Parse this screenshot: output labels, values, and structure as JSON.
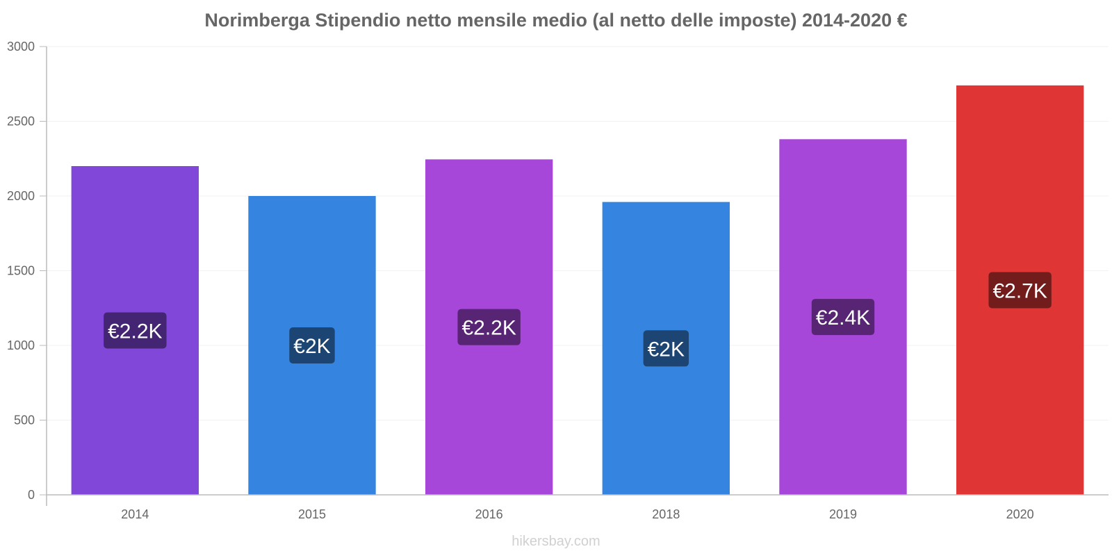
{
  "chart_data": {
    "type": "bar",
    "title": "Norimberga Stipendio netto mensile medio (al netto delle imposte) 2014-2020 €",
    "xlabel": "",
    "ylabel": "",
    "ylim": [
      0,
      3000
    ],
    "yticks": [
      0,
      500,
      1000,
      1500,
      2000,
      2500,
      3000
    ],
    "categories": [
      "2014",
      "2015",
      "2016",
      "2018",
      "2019",
      "2020"
    ],
    "values": [
      2200,
      2000,
      2245,
      1960,
      2380,
      2740
    ],
    "data_labels": [
      "€2.2K",
      "€2K",
      "€2.2K",
      "€2K",
      "€2.4K",
      "€2.7K"
    ],
    "bar_colors": [
      "#8047d9",
      "#3584e0",
      "#a647d9",
      "#3584e0",
      "#a647d9",
      "#e03535"
    ],
    "label_bg_colors": [
      "#432573",
      "#1c4573",
      "#572573",
      "#1c4573",
      "#572573",
      "#731c1c"
    ],
    "grid": true,
    "legend": "none"
  },
  "watermark": "hikersbay.com"
}
